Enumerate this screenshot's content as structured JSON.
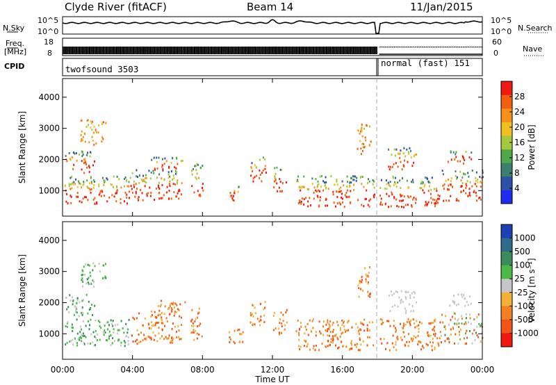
{
  "header": {
    "station": "Clyde River (fitACF)",
    "beam": "Beam 14",
    "date": "11/Jan/2015"
  },
  "strips": {
    "nsky_label": "N.Sky",
    "nsearch_label": "N.Search",
    "count_ticks": [
      "10^5",
      "10^0"
    ],
    "freq_label_1": "Freq.",
    "freq_label_2": "[MHz]",
    "freq_ticks": [
      "18",
      "8"
    ],
    "nave_label": "Nave",
    "nave_ticks": [
      "60",
      "0"
    ],
    "cpid_label": "CPID",
    "cpid_modes": [
      {
        "name": "twofsound 3503",
        "start_hour": 0,
        "end_hour": 18
      },
      {
        "name": "normal (fast) 151",
        "start_hour": 18,
        "end_hour": 24
      }
    ]
  },
  "time_axis": {
    "label": "Time UT",
    "ticks": [
      "00:00",
      "04:00",
      "08:00",
      "12:00",
      "16:00",
      "20:00",
      "00:00"
    ],
    "hours": [
      0,
      4,
      8,
      12,
      16,
      20,
      24
    ]
  },
  "chart_data": [
    {
      "type": "heatmap",
      "parameter": "Power",
      "ylabel": "Slant Range [km]",
      "xlim_hours": [
        0,
        24
      ],
      "ylim_km": [
        180,
        4600
      ],
      "yticks": [
        "1000",
        "2000",
        "3000",
        "4000"
      ],
      "ytick_values": [
        1000,
        2000,
        3000,
        4000
      ],
      "colorbar_label": "Power [dB]",
      "colorbar_ticks": [
        "4",
        "8",
        "12",
        "16",
        "20",
        "24",
        "28"
      ],
      "colorbar_tick_values": [
        4,
        8,
        12,
        16,
        20,
        24,
        28
      ],
      "colorbar_range": [
        0,
        32
      ],
      "colorbar_colors": [
        "#1e2cf0",
        "#2b52a6",
        "#3b7f6c",
        "#50a84a",
        "#a6c83c",
        "#f0c020",
        "#f59018",
        "#f06010",
        "#ef1a10"
      ]
    },
    {
      "type": "heatmap",
      "parameter": "Velocity",
      "ylabel": "Slant Range [km]",
      "xlim_hours": [
        0,
        24
      ],
      "ylim_km": [
        180,
        4600
      ],
      "yticks": [
        "1000",
        "2000",
        "3000",
        "4000"
      ],
      "ytick_values": [
        1000,
        2000,
        3000,
        4000
      ],
      "colorbar_label": "Velocity [m s⁻¹]",
      "colorbar_ticks": [
        "1000",
        "500",
        "100",
        "25",
        "-25",
        "-100",
        "-500",
        "-1000"
      ],
      "colorbar_colors": [
        "#1f3fb4",
        "#2f6c8a",
        "#3b8c5c",
        "#4cb848",
        "#c6c6c6",
        "#f2b038",
        "#f08020",
        "#f05418",
        "#ee1810"
      ]
    }
  ]
}
